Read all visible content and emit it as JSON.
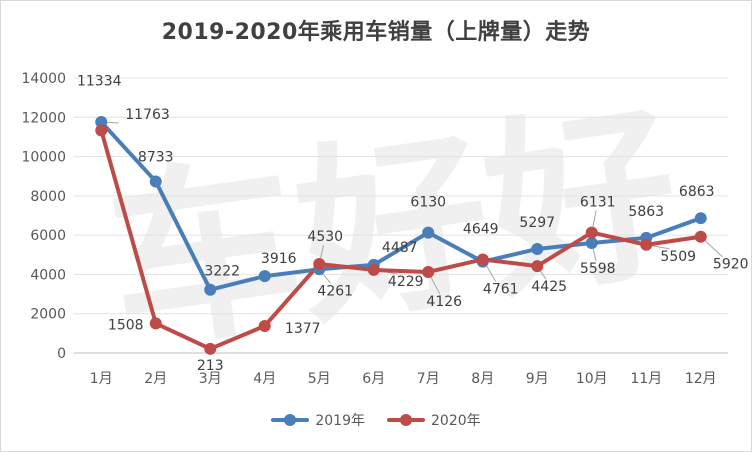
{
  "chart_data": {
    "type": "line",
    "title": "2019-2020年乘用车销量（上牌量）走势",
    "categories": [
      "1月",
      "2月",
      "3月",
      "4月",
      "5月",
      "6月",
      "7月",
      "8月",
      "9月",
      "10月",
      "11月",
      "12月"
    ],
    "ylim": [
      0,
      14000
    ],
    "yticks": [
      "0",
      "2000",
      "4000",
      "6000",
      "8000",
      "10000",
      "12000",
      "14000"
    ],
    "grid": true,
    "legend_position": "bottom",
    "series": [
      {
        "name": "2019年",
        "color": "#4a7ebb",
        "values": [
          11763,
          8733,
          3222,
          3916,
          4261,
          4487,
          6130,
          4649,
          5297,
          5598,
          5863,
          6863
        ],
        "labels": [
          "11763",
          "8733",
          "3222",
          "3916",
          "4261",
          "4487",
          "6130",
          "4649",
          "5297",
          "5598",
          "5863",
          "6863"
        ]
      },
      {
        "name": "2020年",
        "color": "#be4b48",
        "values": [
          11334,
          1508,
          213,
          1377,
          4530,
          4229,
          4126,
          4761,
          4425,
          6131,
          5509,
          5920
        ],
        "labels": [
          "11334",
          "1508",
          "213",
          "1377",
          "4530",
          "4229",
          "4126",
          "4761",
          "4425",
          "6131",
          "5509",
          "5920"
        ]
      }
    ]
  },
  "watermark_text": "车好好"
}
